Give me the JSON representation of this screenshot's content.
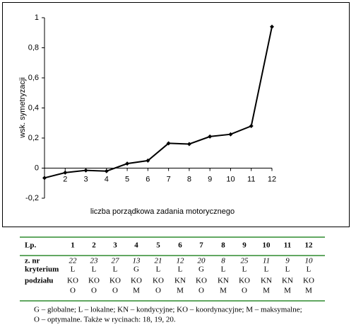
{
  "chart_data": {
    "type": "line",
    "y_label": "wsk. symetryzacji",
    "x_label": "liczba porządkowa zadania motorycznego",
    "x": [
      1,
      2,
      3,
      4,
      5,
      6,
      7,
      8,
      9,
      10,
      11,
      12
    ],
    "values": [
      -0.065,
      -0.03,
      -0.015,
      -0.02,
      0.03,
      0.05,
      0.165,
      0.16,
      0.21,
      0.225,
      0.28,
      0.94
    ],
    "color": "#000000",
    "xlim": [
      1,
      12
    ],
    "xticks": [
      2,
      3,
      4,
      5,
      6,
      7,
      8,
      9,
      10,
      11,
      12
    ],
    "ylim": [
      -0.2,
      1
    ],
    "yticks": [
      {
        "value": -0.2,
        "label": "-0,2"
      },
      0,
      {
        "value": 0.2,
        "label": "0,2"
      },
      {
        "value": 0.4,
        "label": "0,4"
      },
      {
        "value": 0.6,
        "label": "0,6"
      },
      {
        "value": 0.8,
        "label": "0,8"
      },
      1
    ],
    "grid": false
  },
  "table": {
    "header": [
      "Lp.",
      1,
      2,
      3,
      4,
      5,
      6,
      7,
      8,
      9,
      10,
      11,
      12
    ],
    "rows": [
      {
        "label": "z. nr",
        "cells": [
          22,
          23,
          27,
          13,
          21,
          12,
          20,
          8,
          25,
          11,
          9,
          10
        ]
      },
      {
        "label": "kryterium",
        "cells": [
          "L",
          "L",
          "L",
          "G",
          "L",
          "L",
          "G",
          "L",
          "L",
          "L",
          "L",
          "L"
        ]
      },
      {
        "label": "podziału",
        "cells": [
          "KO",
          "KO",
          "KO",
          "KO",
          "KO",
          "KN",
          "KO",
          "KN",
          "KO",
          "KN",
          "KN",
          "KO"
        ]
      },
      {
        "cells": [
          "O",
          "O",
          "O",
          "M",
          "O",
          "M",
          "O",
          "M",
          "O",
          "M",
          "M",
          "M"
        ]
      }
    ],
    "footnote": [
      "G – globalne; L – lokalne; KN – kondycyjne; KO – koordynacyjne; M – maksymalne;",
      "O – optymalne. Także w rycinach: 18, 19, 20."
    ]
  }
}
